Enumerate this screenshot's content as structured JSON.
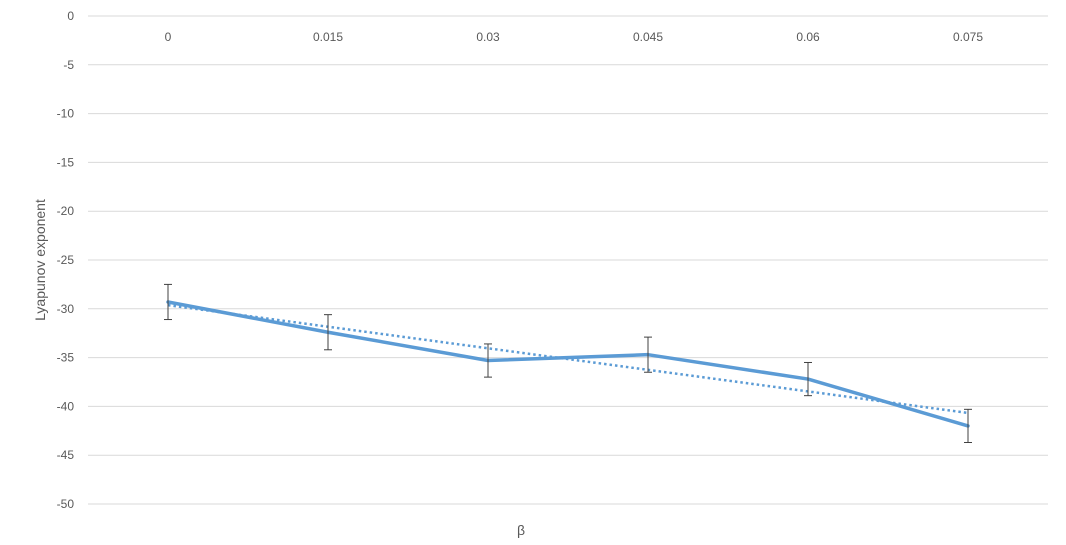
{
  "chart_data": {
    "type": "line",
    "title": "",
    "xlabel": "β",
    "ylabel": "Lyapunov exponent",
    "categories": [
      "0",
      "0.015",
      "0.03",
      "0.045",
      "0.06",
      "0.075"
    ],
    "y_ticks": [
      "0",
      "-5",
      "-10",
      "-15",
      "-20",
      "-25",
      "-30",
      "-35",
      "-40",
      "-45",
      "-50"
    ],
    "ylim": [
      -50,
      0
    ],
    "grid": true,
    "legend": "none",
    "x_tick_position": "top",
    "series": [
      {
        "values": [
          -29.3,
          -32.4,
          -35.3,
          -34.7,
          -37.2,
          -42.0
        ],
        "error": [
          1.8,
          1.8,
          1.7,
          1.8,
          1.7,
          1.7
        ],
        "color": "#5b9bd5",
        "style": "solid"
      }
    ],
    "trendline": {
      "type": "linear",
      "color": "#5b9bd5",
      "style": "dotted"
    },
    "error_bar_color": "#404040"
  }
}
